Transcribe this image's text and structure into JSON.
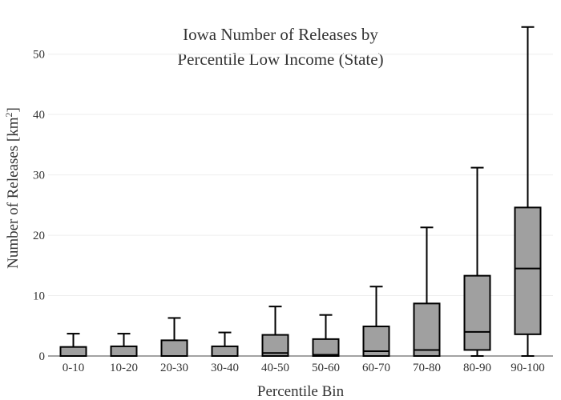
{
  "chart_data": {
    "type": "box",
    "title_lines": [
      "Iowa Number of Releases by",
      "Percentile Low Income (State)"
    ],
    "xlabel": "Percentile Bin",
    "ylabel_main": "Number of Releases  [km",
    "ylabel_sup": "2",
    "ylabel_end": "]",
    "ylim": [
      0,
      55
    ],
    "yticks": [
      0,
      10,
      20,
      30,
      40,
      50
    ],
    "categories": [
      "0-10",
      "10-20",
      "20-30",
      "30-40",
      "40-50",
      "50-60",
      "60-70",
      "70-80",
      "80-90",
      "90-100"
    ],
    "boxes": [
      {
        "min": 0,
        "q1": 0,
        "median": 0,
        "q3": 1.5,
        "max": 3.7
      },
      {
        "min": 0,
        "q1": 0,
        "median": 0,
        "q3": 1.6,
        "max": 3.7
      },
      {
        "min": 0,
        "q1": 0,
        "median": 0,
        "q3": 2.6,
        "max": 6.3
      },
      {
        "min": 0,
        "q1": 0,
        "median": 0,
        "q3": 1.6,
        "max": 3.9
      },
      {
        "min": 0,
        "q1": 0,
        "median": 0.5,
        "q3": 3.5,
        "max": 8.2
      },
      {
        "min": 0,
        "q1": 0,
        "median": 0.2,
        "q3": 2.8,
        "max": 6.8
      },
      {
        "min": 0,
        "q1": 0,
        "median": 0.8,
        "q3": 4.9,
        "max": 11.5
      },
      {
        "min": 0,
        "q1": 0,
        "median": 1.0,
        "q3": 8.7,
        "max": 21.3
      },
      {
        "min": 0,
        "q1": 1.0,
        "median": 4.0,
        "q3": 13.3,
        "max": 31.2
      },
      {
        "min": 0,
        "q1": 3.6,
        "median": 14.5,
        "q3": 24.6,
        "max": 54.5
      }
    ],
    "box_color": "#a0a0a0",
    "line_color": "#000000",
    "grid": true
  }
}
